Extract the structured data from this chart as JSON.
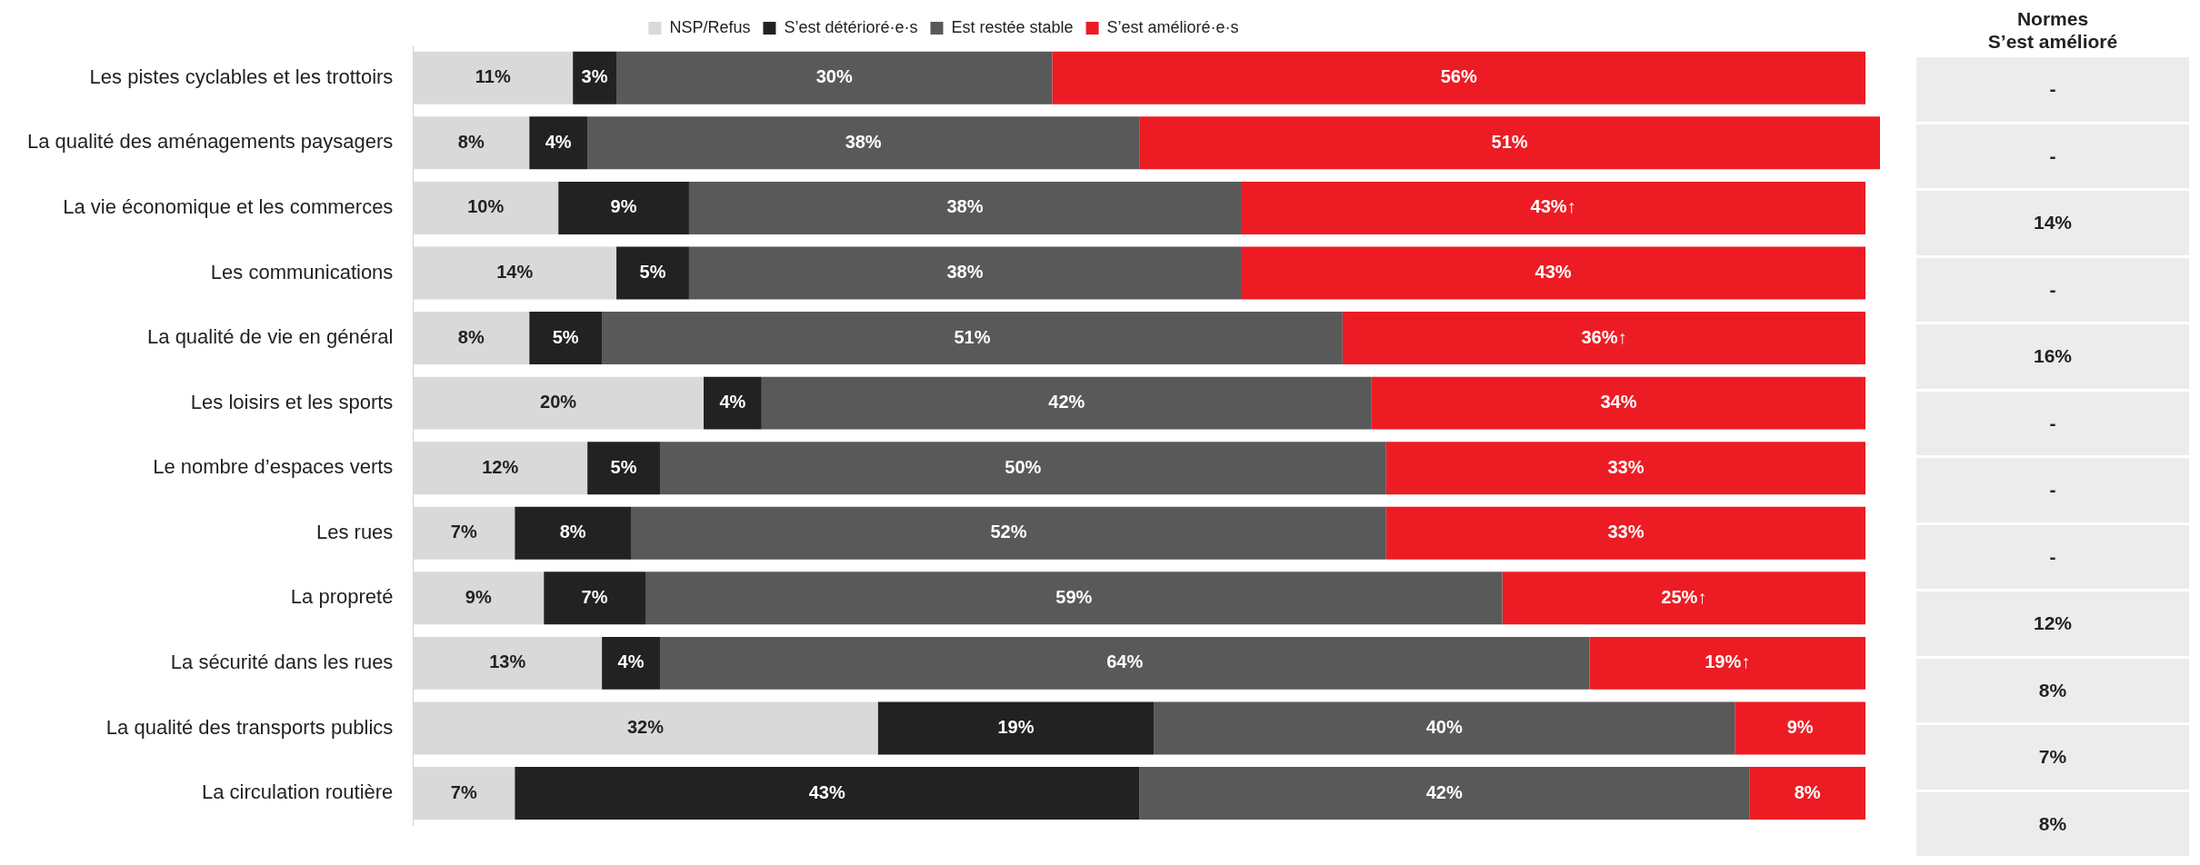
{
  "chart_data": [
    {
      "type": "bar",
      "orientation": "horizontal",
      "stacked": true,
      "legend": "top",
      "grid": false,
      "categories": [
        "Les pistes cyclables et les trottoirs",
        "La qualité des aménagements paysagers",
        "La vie économique et les commerces",
        "Les communications",
        "La qualité de vie en général",
        "Les loisirs et les sports",
        "Le nombre d’espaces verts",
        "Les rues",
        "La propreté",
        "La sécurité dans les rues",
        "La qualité des transports publics",
        "La circulation routière"
      ],
      "series": [
        {
          "name": "NSP/Refus",
          "color": "#d9d9d9",
          "values": [
            11,
            8,
            10,
            14,
            8,
            20,
            12,
            7,
            9,
            13,
            32,
            7
          ],
          "value_labels": [
            "11%",
            "8%",
            "10%",
            "14%",
            "8%",
            "20%",
            "12%",
            "7%",
            "9%",
            "13%",
            "32%",
            "7%"
          ]
        },
        {
          "name": "S’est détérioré·e·s",
          "color": "#222222",
          "values": [
            3,
            4,
            9,
            5,
            5,
            4,
            5,
            8,
            7,
            4,
            19,
            43
          ],
          "value_labels": [
            "3%",
            "4%",
            "9%",
            "5%",
            "5%",
            "4%",
            "5%",
            "8%",
            "7%",
            "4%",
            "19%",
            "43%"
          ]
        },
        {
          "name": "Est restée stable",
          "color": "#595959",
          "values": [
            30,
            38,
            38,
            38,
            51,
            42,
            50,
            52,
            59,
            64,
            40,
            42
          ],
          "value_labels": [
            "30%",
            "38%",
            "38%",
            "38%",
            "51%",
            "42%",
            "50%",
            "52%",
            "59%",
            "64%",
            "40%",
            "42%"
          ]
        },
        {
          "name": "S’est amélioré·e·s",
          "color": "#ed1c24",
          "values": [
            56,
            51,
            43,
            43,
            36,
            34,
            33,
            33,
            25,
            19,
            9,
            8
          ],
          "value_labels": [
            "56%",
            "51%",
            "43%↑",
            "43%",
            "36%↑",
            "34%",
            "33%",
            "33%",
            "25%↑",
            "19%↑",
            "9%",
            "8%"
          ]
        }
      ]
    },
    {
      "type": "other",
      "title": "Normes S’est amélioré",
      "annotations": [
        "-",
        "-",
        "14%",
        "-",
        "16%",
        "-",
        "-",
        "-",
        "12%",
        "8%",
        "7%",
        "8%"
      ]
    }
  ]
}
